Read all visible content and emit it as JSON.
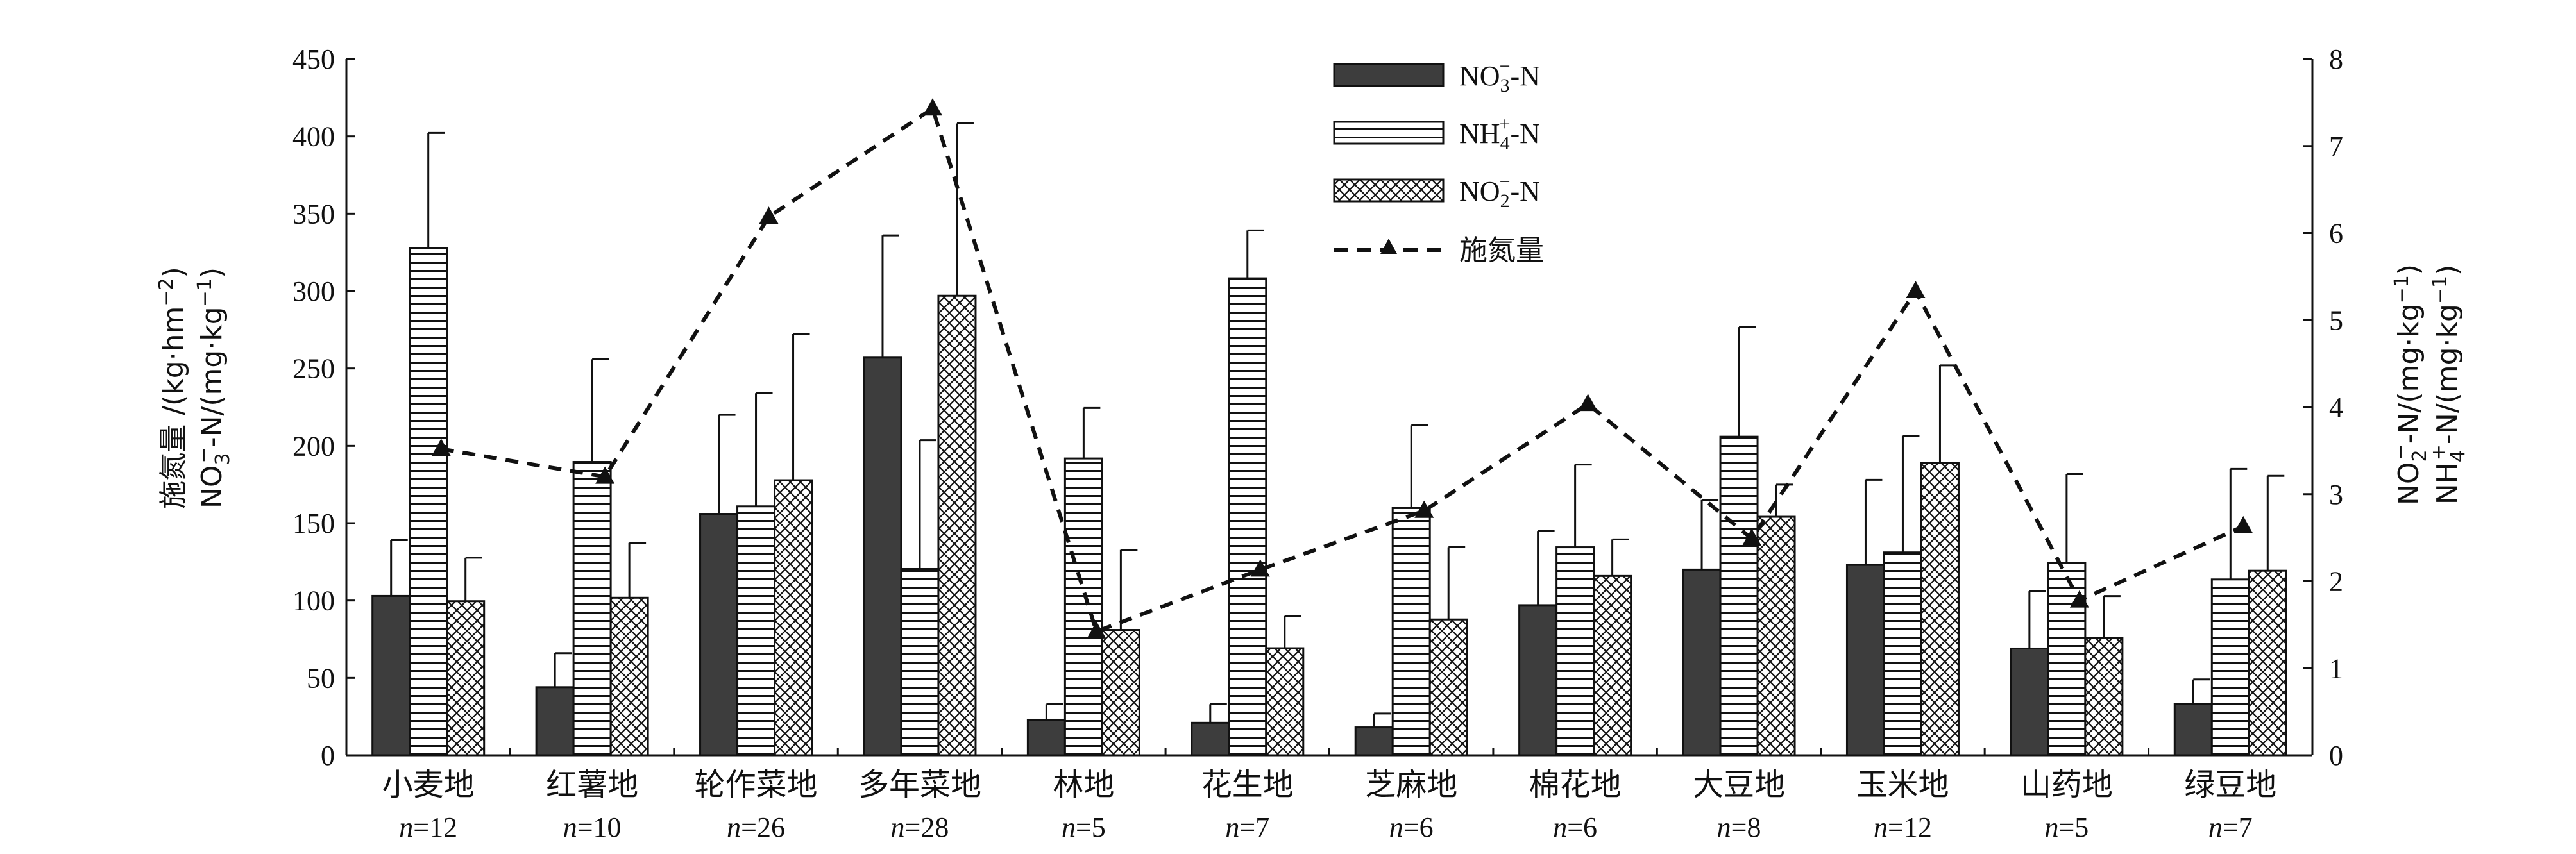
{
  "chart_data": {
    "type": "bar",
    "categories": [
      "小麦地",
      "红薯地",
      "轮作菜地",
      "多年菜地",
      "林地",
      "花生地",
      "芝麻地",
      "棉花地",
      "大豆地",
      "玉米地",
      "山药地",
      "绿豆地"
    ],
    "sample_sizes": [
      "12",
      "10",
      "26",
      "28",
      "5",
      "7",
      "6",
      "6",
      "8",
      "12",
      "5",
      "7"
    ],
    "n_prefix": "n",
    "n_equals": "=",
    "series": [
      {
        "name": "NO3-N",
        "label": "NO",
        "sub": "3",
        "sup": "−",
        "suffix": "-N",
        "axis": "left",
        "pattern": "solid",
        "values": [
          103,
          44,
          156,
          257,
          23,
          21,
          18,
          97,
          120,
          123,
          69,
          33
        ],
        "errors": [
          36,
          22,
          64,
          79,
          10,
          12,
          9,
          48,
          45,
          55,
          37,
          16
        ]
      },
      {
        "name": "NH4+-N",
        "label": "NH",
        "sub": "4",
        "sup": "+",
        "suffix": "-N",
        "axis": "right",
        "pattern": "hstripes",
        "values": [
          5.83,
          3.37,
          2.86,
          2.14,
          3.41,
          5.48,
          2.84,
          2.39,
          3.66,
          2.33,
          2.21,
          2.02
        ],
        "errors": [
          1.32,
          1.18,
          1.3,
          1.48,
          0.58,
          0.55,
          0.95,
          0.95,
          1.26,
          1.34,
          1.02,
          1.27
        ]
      },
      {
        "name": "NO2-N",
        "label": "NO",
        "sub": "2",
        "sup": "−",
        "suffix": "-N",
        "axis": "right",
        "pattern": "crosshatch",
        "values": [
          1.77,
          1.81,
          3.16,
          5.28,
          1.44,
          1.23,
          1.56,
          2.06,
          2.74,
          3.36,
          1.35,
          2.12
        ],
        "errors": [
          0.5,
          0.63,
          1.68,
          1.98,
          0.92,
          0.37,
          0.83,
          0.42,
          0.37,
          1.12,
          0.48,
          1.09
        ]
      },
      {
        "name": "施氮量",
        "label": "施氮量",
        "axis": "left",
        "type": "line",
        "style": "dashed",
        "marker": "triangle",
        "values": [
          198,
          180,
          348,
          418,
          80,
          120,
          158,
          227,
          140,
          300,
          100,
          148
        ]
      }
    ],
    "left_axis": {
      "ylim": [
        0,
        450
      ],
      "ticks": [
        "0",
        "50",
        "100",
        "150",
        "200",
        "250",
        "300",
        "350",
        "400",
        "450"
      ]
    },
    "right_axis": {
      "ylim": [
        0,
        8
      ],
      "ticks": [
        "0",
        "1",
        "2",
        "3",
        "4",
        "5",
        "6",
        "7",
        "8"
      ]
    },
    "left_title_line1": "施氮量 /(kg·hm",
    "left_title_line1_sup": "−2",
    "left_title_line1_end": ")",
    "left_title_line2_a": "NO",
    "left_title_line2_sub": "3",
    "left_title_line2_sup": "−",
    "left_title_line2_b": "-N/(mg·kg",
    "left_title_line2_sup2": "−1",
    "left_title_line2_end": ")",
    "right_title_line1_a": "NO",
    "right_title_line1_sub": "2",
    "right_title_line1_sup": "−",
    "right_title_line1_b": "-N/(mg·kg",
    "right_title_line1_sup2": "−1",
    "right_title_line1_end": ")",
    "right_title_line2_a": "NH",
    "right_title_line2_sub": "4",
    "right_title_line2_sup": "+",
    "right_title_line2_b": "-N/(mg·kg",
    "right_title_line2_sup2": "−1",
    "right_title_line2_end": ")",
    "legend_position": "top-center",
    "grid": false,
    "colors": {
      "dark_bar": "#3d3d3d",
      "stroke": "#111111",
      "line": "#111111"
    }
  }
}
